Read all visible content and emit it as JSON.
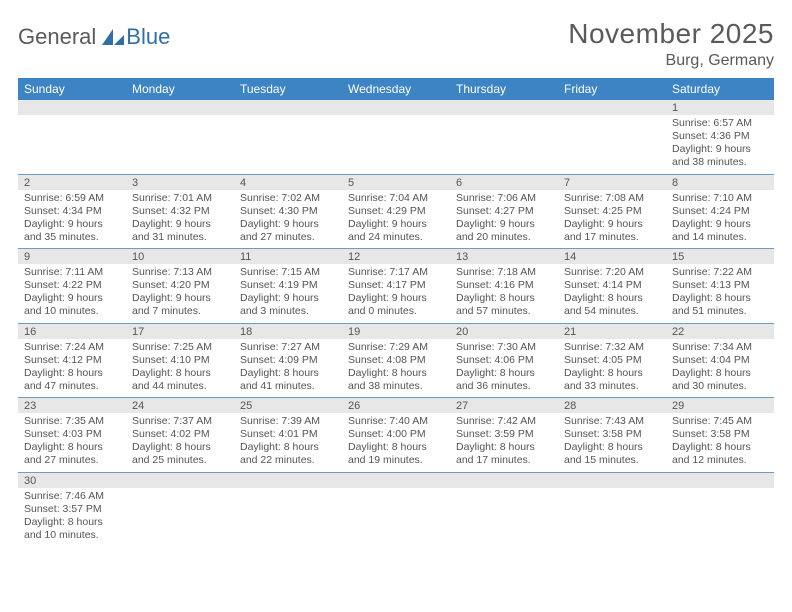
{
  "brand": {
    "part1": "General",
    "part2": "Blue"
  },
  "title": "November 2025",
  "location": "Burg, Germany",
  "colors": {
    "header_bg": "#3d84c4",
    "header_text": "#ffffff",
    "daynum_bg": "#e7e7e7",
    "cell_border": "#6d9cc6",
    "body_text": "#555555",
    "title_text": "#5a5a5a",
    "logo_accent": "#2f6fa8"
  },
  "typography": {
    "title_fontsize": 28,
    "location_fontsize": 16,
    "dayheader_fontsize": 12,
    "daynum_fontsize": 11,
    "cell_fontsize": 10.5
  },
  "day_headers": [
    "Sunday",
    "Monday",
    "Tuesday",
    "Wednesday",
    "Thursday",
    "Friday",
    "Saturday"
  ],
  "weeks": [
    [
      null,
      null,
      null,
      null,
      null,
      null,
      {
        "num": "1",
        "sunrise": "Sunrise: 6:57 AM",
        "sunset": "Sunset: 4:36 PM",
        "daylight": "Daylight: 9 hours and 38 minutes."
      }
    ],
    [
      {
        "num": "2",
        "sunrise": "Sunrise: 6:59 AM",
        "sunset": "Sunset: 4:34 PM",
        "daylight": "Daylight: 9 hours and 35 minutes."
      },
      {
        "num": "3",
        "sunrise": "Sunrise: 7:01 AM",
        "sunset": "Sunset: 4:32 PM",
        "daylight": "Daylight: 9 hours and 31 minutes."
      },
      {
        "num": "4",
        "sunrise": "Sunrise: 7:02 AM",
        "sunset": "Sunset: 4:30 PM",
        "daylight": "Daylight: 9 hours and 27 minutes."
      },
      {
        "num": "5",
        "sunrise": "Sunrise: 7:04 AM",
        "sunset": "Sunset: 4:29 PM",
        "daylight": "Daylight: 9 hours and 24 minutes."
      },
      {
        "num": "6",
        "sunrise": "Sunrise: 7:06 AM",
        "sunset": "Sunset: 4:27 PM",
        "daylight": "Daylight: 9 hours and 20 minutes."
      },
      {
        "num": "7",
        "sunrise": "Sunrise: 7:08 AM",
        "sunset": "Sunset: 4:25 PM",
        "daylight": "Daylight: 9 hours and 17 minutes."
      },
      {
        "num": "8",
        "sunrise": "Sunrise: 7:10 AM",
        "sunset": "Sunset: 4:24 PM",
        "daylight": "Daylight: 9 hours and 14 minutes."
      }
    ],
    [
      {
        "num": "9",
        "sunrise": "Sunrise: 7:11 AM",
        "sunset": "Sunset: 4:22 PM",
        "daylight": "Daylight: 9 hours and 10 minutes."
      },
      {
        "num": "10",
        "sunrise": "Sunrise: 7:13 AM",
        "sunset": "Sunset: 4:20 PM",
        "daylight": "Daylight: 9 hours and 7 minutes."
      },
      {
        "num": "11",
        "sunrise": "Sunrise: 7:15 AM",
        "sunset": "Sunset: 4:19 PM",
        "daylight": "Daylight: 9 hours and 3 minutes."
      },
      {
        "num": "12",
        "sunrise": "Sunrise: 7:17 AM",
        "sunset": "Sunset: 4:17 PM",
        "daylight": "Daylight: 9 hours and 0 minutes."
      },
      {
        "num": "13",
        "sunrise": "Sunrise: 7:18 AM",
        "sunset": "Sunset: 4:16 PM",
        "daylight": "Daylight: 8 hours and 57 minutes."
      },
      {
        "num": "14",
        "sunrise": "Sunrise: 7:20 AM",
        "sunset": "Sunset: 4:14 PM",
        "daylight": "Daylight: 8 hours and 54 minutes."
      },
      {
        "num": "15",
        "sunrise": "Sunrise: 7:22 AM",
        "sunset": "Sunset: 4:13 PM",
        "daylight": "Daylight: 8 hours and 51 minutes."
      }
    ],
    [
      {
        "num": "16",
        "sunrise": "Sunrise: 7:24 AM",
        "sunset": "Sunset: 4:12 PM",
        "daylight": "Daylight: 8 hours and 47 minutes."
      },
      {
        "num": "17",
        "sunrise": "Sunrise: 7:25 AM",
        "sunset": "Sunset: 4:10 PM",
        "daylight": "Daylight: 8 hours and 44 minutes."
      },
      {
        "num": "18",
        "sunrise": "Sunrise: 7:27 AM",
        "sunset": "Sunset: 4:09 PM",
        "daylight": "Daylight: 8 hours and 41 minutes."
      },
      {
        "num": "19",
        "sunrise": "Sunrise: 7:29 AM",
        "sunset": "Sunset: 4:08 PM",
        "daylight": "Daylight: 8 hours and 38 minutes."
      },
      {
        "num": "20",
        "sunrise": "Sunrise: 7:30 AM",
        "sunset": "Sunset: 4:06 PM",
        "daylight": "Daylight: 8 hours and 36 minutes."
      },
      {
        "num": "21",
        "sunrise": "Sunrise: 7:32 AM",
        "sunset": "Sunset: 4:05 PM",
        "daylight": "Daylight: 8 hours and 33 minutes."
      },
      {
        "num": "22",
        "sunrise": "Sunrise: 7:34 AM",
        "sunset": "Sunset: 4:04 PM",
        "daylight": "Daylight: 8 hours and 30 minutes."
      }
    ],
    [
      {
        "num": "23",
        "sunrise": "Sunrise: 7:35 AM",
        "sunset": "Sunset: 4:03 PM",
        "daylight": "Daylight: 8 hours and 27 minutes."
      },
      {
        "num": "24",
        "sunrise": "Sunrise: 7:37 AM",
        "sunset": "Sunset: 4:02 PM",
        "daylight": "Daylight: 8 hours and 25 minutes."
      },
      {
        "num": "25",
        "sunrise": "Sunrise: 7:39 AM",
        "sunset": "Sunset: 4:01 PM",
        "daylight": "Daylight: 8 hours and 22 minutes."
      },
      {
        "num": "26",
        "sunrise": "Sunrise: 7:40 AM",
        "sunset": "Sunset: 4:00 PM",
        "daylight": "Daylight: 8 hours and 19 minutes."
      },
      {
        "num": "27",
        "sunrise": "Sunrise: 7:42 AM",
        "sunset": "Sunset: 3:59 PM",
        "daylight": "Daylight: 8 hours and 17 minutes."
      },
      {
        "num": "28",
        "sunrise": "Sunrise: 7:43 AM",
        "sunset": "Sunset: 3:58 PM",
        "daylight": "Daylight: 8 hours and 15 minutes."
      },
      {
        "num": "29",
        "sunrise": "Sunrise: 7:45 AM",
        "sunset": "Sunset: 3:58 PM",
        "daylight": "Daylight: 8 hours and 12 minutes."
      }
    ],
    [
      {
        "num": "30",
        "sunrise": "Sunrise: 7:46 AM",
        "sunset": "Sunset: 3:57 PM",
        "daylight": "Daylight: 8 hours and 10 minutes."
      },
      null,
      null,
      null,
      null,
      null,
      null
    ]
  ]
}
